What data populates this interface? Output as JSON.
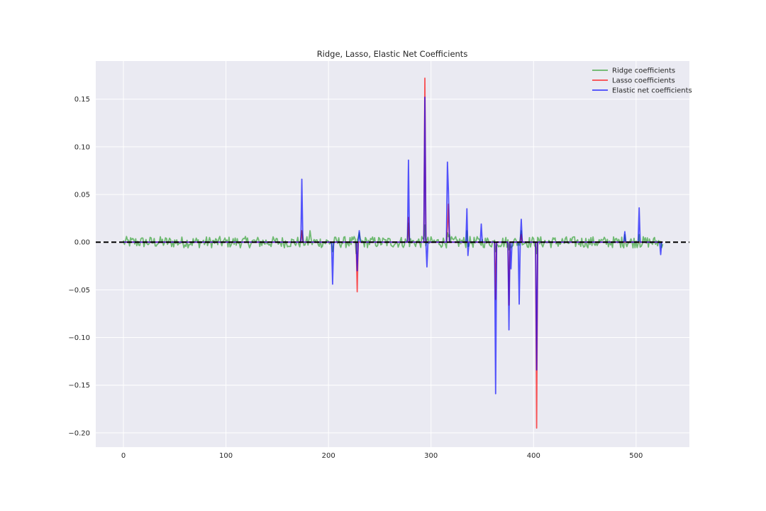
{
  "chart_data": {
    "type": "line",
    "title": "Ridge, Lasso, Elastic Net Coefficients",
    "xlabel": "",
    "ylabel": "",
    "xlim": [
      -27,
      552
    ],
    "ylim": [
      -0.215,
      0.19
    ],
    "xticks": [
      0,
      100,
      200,
      300,
      400,
      500
    ],
    "xtick_labels": [
      "0",
      "100",
      "200",
      "300",
      "400",
      "500"
    ],
    "yticks": [
      -0.2,
      -0.15,
      -0.1,
      -0.05,
      0.0,
      0.05,
      0.1,
      0.15
    ],
    "ytick_labels": [
      "−0.20",
      "−0.15",
      "−0.10",
      "−0.05",
      "0.00",
      "0.05",
      "0.10",
      "0.15"
    ],
    "grid": true,
    "legend_position": "top-right",
    "reference_line": {
      "y": 0.0,
      "style": "dashed",
      "color": "#000000"
    },
    "n_coefficients": 527,
    "series": [
      {
        "name": "Ridge coefficients",
        "color": "#2ca02c",
        "noise_amplitude": 0.006,
        "points": [
          [
            174,
            0.012
          ],
          [
            182,
            0.012
          ],
          [
            204,
            -0.01
          ],
          [
            227,
            -0.012
          ],
          [
            230,
            0.01
          ],
          [
            278,
            0.02
          ],
          [
            294,
            0.018
          ],
          [
            316,
            0.01
          ],
          [
            318,
            0.008
          ],
          [
            335,
            0.012
          ],
          [
            363,
            -0.01
          ],
          [
            376,
            -0.008
          ],
          [
            388,
            0.012
          ],
          [
            403,
            -0.012
          ],
          [
            489,
            0.008
          ],
          [
            503,
            0.008
          ]
        ]
      },
      {
        "name": "Lasso coefficients",
        "color": "#ff0000",
        "points": [
          [
            174,
            0.012
          ],
          [
            228,
            -0.052
          ],
          [
            278,
            0.026
          ],
          [
            294,
            0.172
          ],
          [
            316,
            0.016
          ],
          [
            317,
            0.04
          ],
          [
            363,
            -0.06
          ],
          [
            376,
            -0.066
          ],
          [
            388,
            0.008
          ],
          [
            403,
            -0.195
          ]
        ]
      },
      {
        "name": "Elastic net coefficients",
        "color": "#0000ff",
        "points": [
          [
            174,
            0.066
          ],
          [
            204,
            -0.044
          ],
          [
            228,
            -0.03
          ],
          [
            230,
            0.012
          ],
          [
            278,
            0.086
          ],
          [
            294,
            0.152
          ],
          [
            296,
            -0.026
          ],
          [
            316,
            0.084
          ],
          [
            317,
            0.053
          ],
          [
            335,
            0.035
          ],
          [
            336,
            -0.014
          ],
          [
            349,
            0.019
          ],
          [
            363,
            -0.159
          ],
          [
            376,
            -0.092
          ],
          [
            378,
            -0.028
          ],
          [
            386,
            -0.065
          ],
          [
            388,
            0.024
          ],
          [
            403,
            -0.134
          ],
          [
            489,
            0.011
          ],
          [
            503,
            0.036
          ],
          [
            524,
            -0.013
          ]
        ]
      }
    ]
  }
}
